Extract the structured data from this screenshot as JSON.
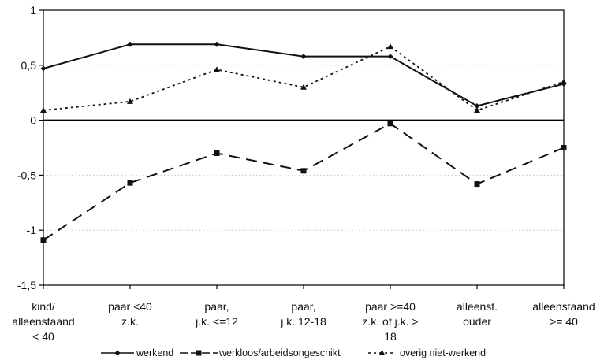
{
  "chart_data": {
    "type": "line",
    "categories": [
      [
        "kind/",
        "alleenstaand",
        "< 40"
      ],
      [
        "paar <40",
        "z.k."
      ],
      [
        "paar,",
        "j.k. <=12"
      ],
      [
        "paar,",
        "j.k. 12-18"
      ],
      [
        "paar >=40",
        "z.k. of j.k. >",
        "18"
      ],
      [
        "alleenst.",
        "ouder"
      ],
      [
        "alleenstaand",
        ">= 40"
      ]
    ],
    "series": [
      {
        "name": "werkend",
        "values": [
          0.47,
          0.69,
          0.69,
          0.58,
          0.58,
          0.13,
          0.33
        ],
        "style": "solid",
        "marker": "diamond"
      },
      {
        "name": "werkloos/arbeidsongeschikt",
        "values": [
          -1.09,
          -0.57,
          -0.3,
          -0.46,
          -0.03,
          -0.58,
          -0.25
        ],
        "style": "longdash",
        "marker": "square"
      },
      {
        "name": "overig niet-werkend",
        "values": [
          0.09,
          0.17,
          0.46,
          0.3,
          0.67,
          0.09,
          0.35
        ],
        "style": "dotted",
        "marker": "triangle"
      }
    ],
    "yticks": [
      1,
      0.5,
      0,
      -0.5,
      -1,
      -1.5
    ],
    "ytick_labels": [
      "1",
      "0,5",
      "0",
      "-0,5",
      "-1",
      "-1,5"
    ],
    "ylim": [
      -1.5,
      1
    ],
    "grid": "horizontal dotted",
    "legend_position": "bottom",
    "legend_labels": [
      "werkend",
      "werkloos/arbeidsongeschikt",
      "overig niet-werkend"
    ],
    "title": "",
    "xlabel": "",
    "ylabel": ""
  }
}
